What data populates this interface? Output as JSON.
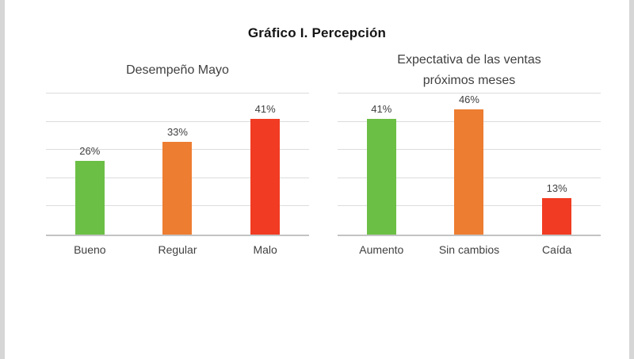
{
  "page_title": "Gráfico I. Percepción",
  "chart_data": [
    {
      "type": "bar",
      "title": "Desempeño Mayo",
      "categories": [
        "Bueno",
        "Regular",
        "Malo"
      ],
      "values": [
        26,
        33,
        41
      ],
      "value_labels": [
        "26%",
        "33%",
        "41%"
      ],
      "bar_colors": [
        "#6CBF45",
        "#ED7D31",
        "#F13B22"
      ],
      "ylim": [
        0,
        50
      ],
      "gridline_step": 10,
      "grid": true,
      "legend": false,
      "xlabel": "",
      "ylabel": ""
    },
    {
      "type": "bar",
      "title": "Expectativa de las ventas próximos meses",
      "categories": [
        "Aumento",
        "Sin cambios",
        "Caída"
      ],
      "values": [
        41,
        46,
        13
      ],
      "value_labels": [
        "41%",
        "46%",
        "13%"
      ],
      "bar_colors": [
        "#6CBF45",
        "#ED7D31",
        "#F13B22"
      ],
      "ylim": [
        0,
        50
      ],
      "gridline_step": 10,
      "grid": true,
      "legend": false,
      "xlabel": "",
      "ylabel": ""
    }
  ],
  "colors": {
    "good": "#6CBF45",
    "neutral": "#ED7D31",
    "bad": "#F13B22",
    "gridline": "#dcdcdc",
    "axis": "#c3c3c3",
    "text": "#404040"
  }
}
